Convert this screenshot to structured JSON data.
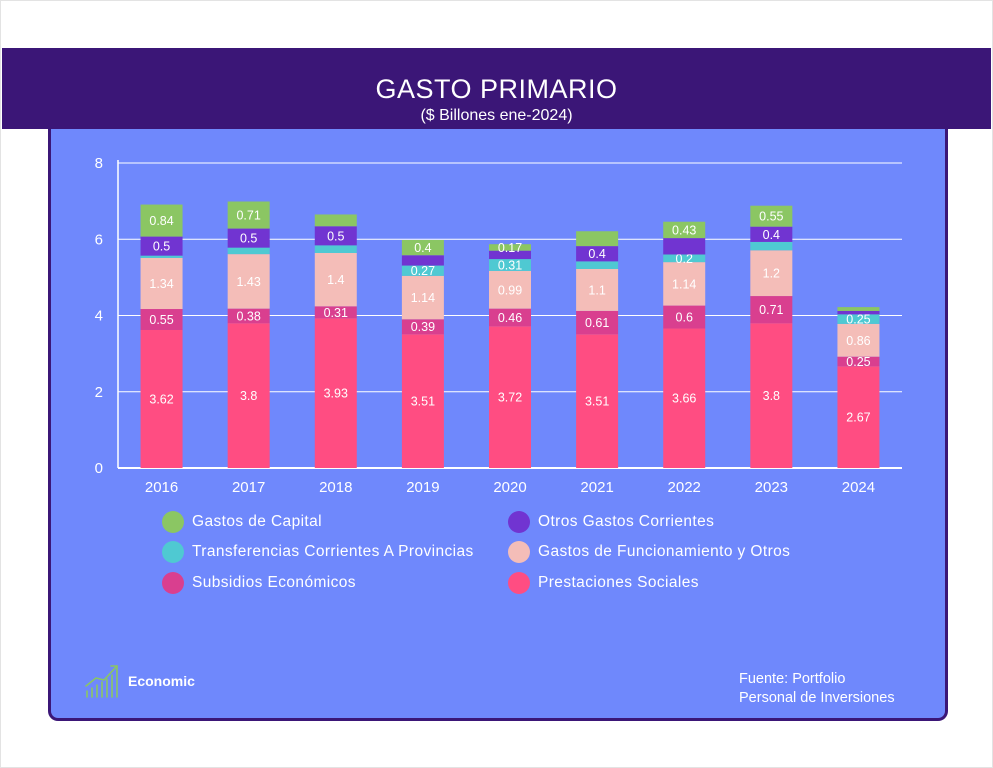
{
  "header": {
    "title": "GASTO PRIMARIO",
    "subtitle": "($ Billones ene-2024)"
  },
  "branding": {
    "logo_icon": "bar-chart-growth-icon",
    "logo_text": "Economic",
    "source_line1": "Fuente: Portfolio",
    "source_line2": "Personal de Inversiones"
  },
  "colors": {
    "header_bg": "#3b1677",
    "panel_bg": "#6f88fc"
  },
  "chart_data": {
    "type": "bar",
    "stacked": true,
    "title": "GASTO PRIMARIO",
    "subtitle": "($ Billones ene-2024)",
    "categories": [
      "2016",
      "2017",
      "2018",
      "2019",
      "2020",
      "2021",
      "2022",
      "2023",
      "2024"
    ],
    "ylim": [
      0,
      8
    ],
    "yticks": [
      0,
      2,
      4,
      6,
      8
    ],
    "grid": true,
    "legend_position": "bottom",
    "series": [
      {
        "name": "Prestaciones Sociales",
        "color": "#ff4d82",
        "values": [
          3.62,
          3.8,
          3.93,
          3.51,
          3.72,
          3.51,
          3.66,
          3.8,
          2.67
        ],
        "labels": [
          "3.62",
          "3.8",
          "3.93",
          "3.51",
          "3.72",
          "3.51",
          "3.66",
          "3.8",
          "2.67"
        ]
      },
      {
        "name": "Subsidios Económicos",
        "color": "#d93f8f",
        "values": [
          0.55,
          0.38,
          0.31,
          0.39,
          0.46,
          0.61,
          0.6,
          0.71,
          0.25
        ],
        "labels": [
          "0.55",
          "0.38",
          "0.31",
          "0.39",
          "0.46",
          "0.61",
          "0.6",
          "0.71",
          "0.25"
        ]
      },
      {
        "name": "Gastos de Funcionamiento y Otros",
        "color": "#f4bdb8",
        "values": [
          1.34,
          1.43,
          1.4,
          1.14,
          0.99,
          1.1,
          1.14,
          1.2,
          0.86
        ],
        "labels": [
          "1.34",
          "1.43",
          "1.4",
          "1.14",
          "0.99",
          "1.1",
          "1.14",
          "1.2",
          "0.86"
        ]
      },
      {
        "name": "Transferencias Corrientes A Provincias",
        "color": "#4fc9d2",
        "values": [
          0.06,
          0.17,
          0.2,
          0.27,
          0.31,
          0.2,
          0.2,
          0.22,
          0.25
        ],
        "labels": [
          "",
          "",
          "",
          "0.27",
          "0.31",
          "",
          "0.2",
          "",
          "0.25"
        ]
      },
      {
        "name": "Otros Gastos Corrientes",
        "color": "#7134d1",
        "values": [
          0.5,
          0.5,
          0.5,
          0.27,
          0.22,
          0.4,
          0.43,
          0.4,
          0.09
        ],
        "labels": [
          "0.5",
          "0.5",
          "0.5",
          "",
          "",
          "0.4",
          "",
          "0.4",
          ""
        ]
      },
      {
        "name": "Gastos de Capital",
        "color": "#8bc663",
        "values": [
          0.84,
          0.71,
          0.31,
          0.4,
          0.17,
          0.39,
          0.43,
          0.55,
          0.1
        ],
        "labels": [
          "0.84",
          "0.71",
          "",
          "0.4",
          "0.17",
          "",
          "0.43",
          "0.55",
          ""
        ]
      }
    ],
    "legend": [
      {
        "name": "Gastos de Capital",
        "color": "#8bc663"
      },
      {
        "name": "Otros Gastos Corrientes",
        "color": "#7134d1"
      },
      {
        "name": "Transferencias Corrientes A Provincias",
        "color": "#4fc9d2"
      },
      {
        "name": "Gastos de Funcionamiento y Otros",
        "color": "#f4bdb8"
      },
      {
        "name": "Subsidios Económicos",
        "color": "#d93f8f"
      },
      {
        "name": "Prestaciones Sociales",
        "color": "#ff4d82"
      }
    ]
  }
}
